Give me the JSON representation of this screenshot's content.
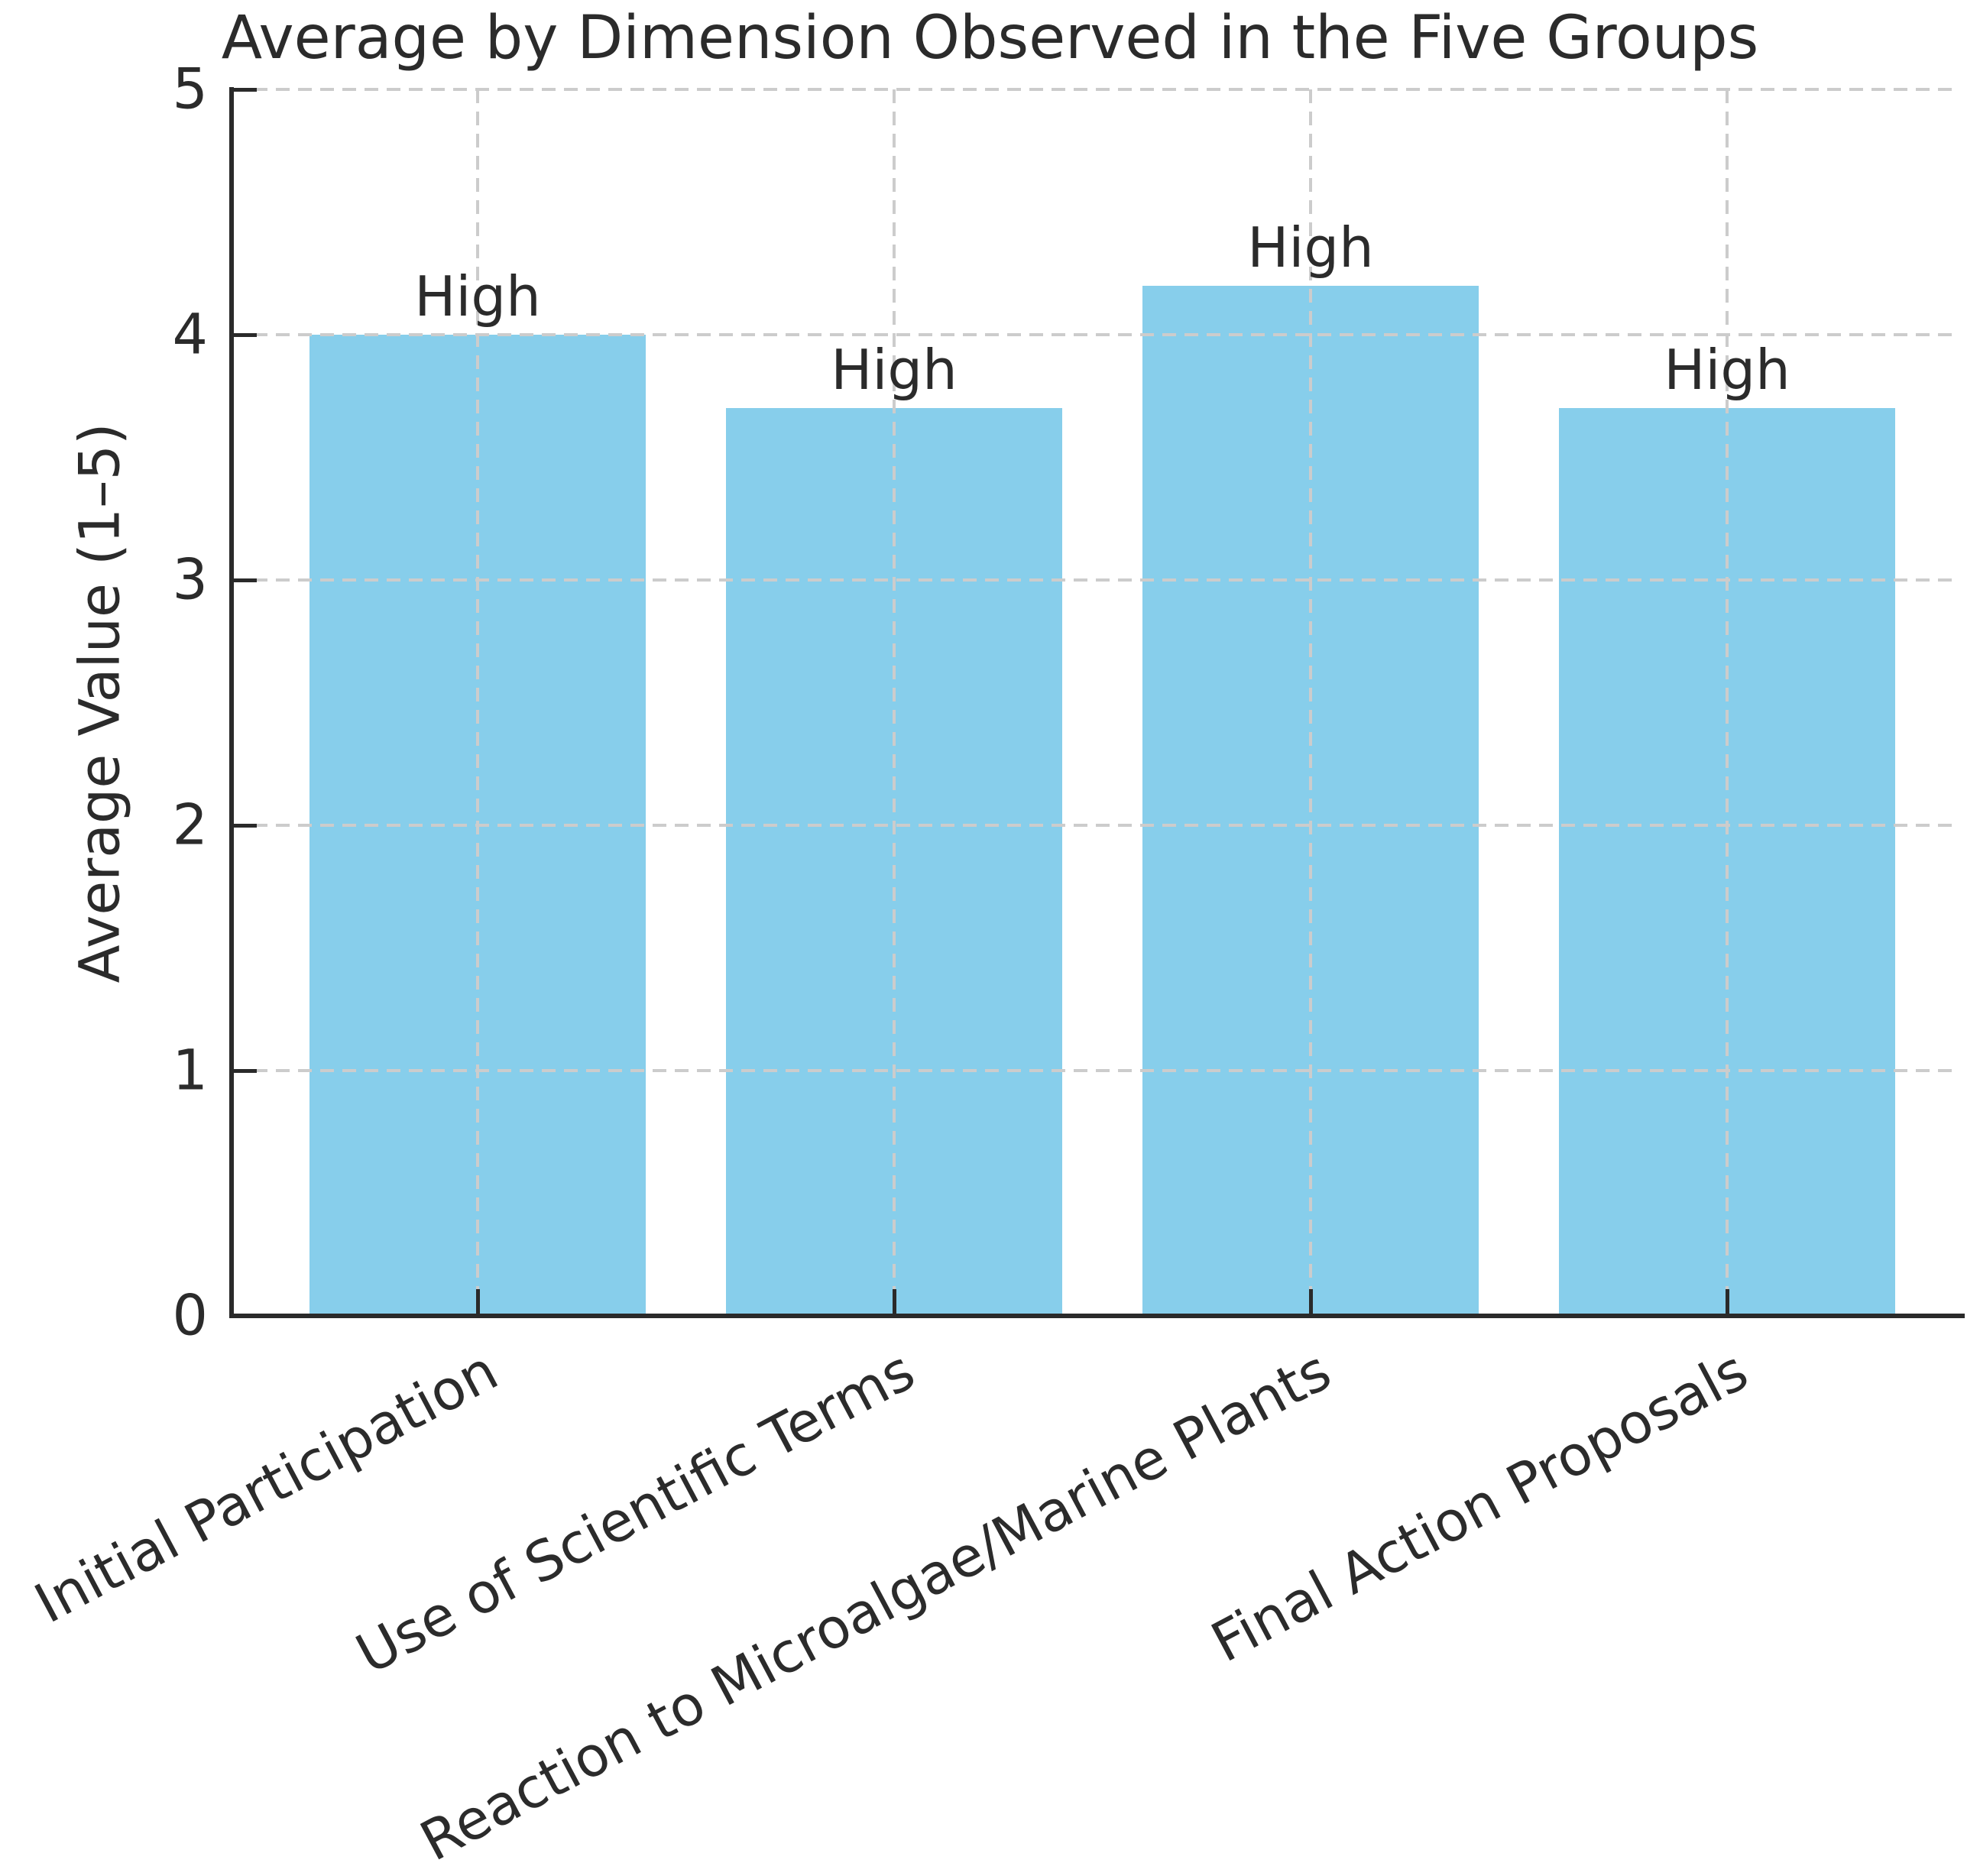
{
  "chart_data": {
    "type": "bar",
    "title": "Average by Dimension Observed in the Five Groups",
    "ylabel": "Average Value (1–5)",
    "xlabel": "",
    "categories": [
      "Initial Participation",
      "Use of Scientific Terms",
      "Reaction to Microalgae/Marine Plants",
      "Final Action Proposals"
    ],
    "values": [
      4.0,
      3.7,
      4.2,
      3.7
    ],
    "bar_labels": [
      "High",
      "High",
      "High",
      "High"
    ],
    "yticks": [
      0,
      1,
      2,
      3,
      4,
      5
    ],
    "ylim": [
      0,
      5
    ],
    "bar_color": "#87CEEB",
    "grid": "on",
    "grid_style": "dashed",
    "grid_color": "#cccccc",
    "axis_color": "#2a2a2a",
    "text_color": "#2b2b2b",
    "legend_position": "none"
  }
}
